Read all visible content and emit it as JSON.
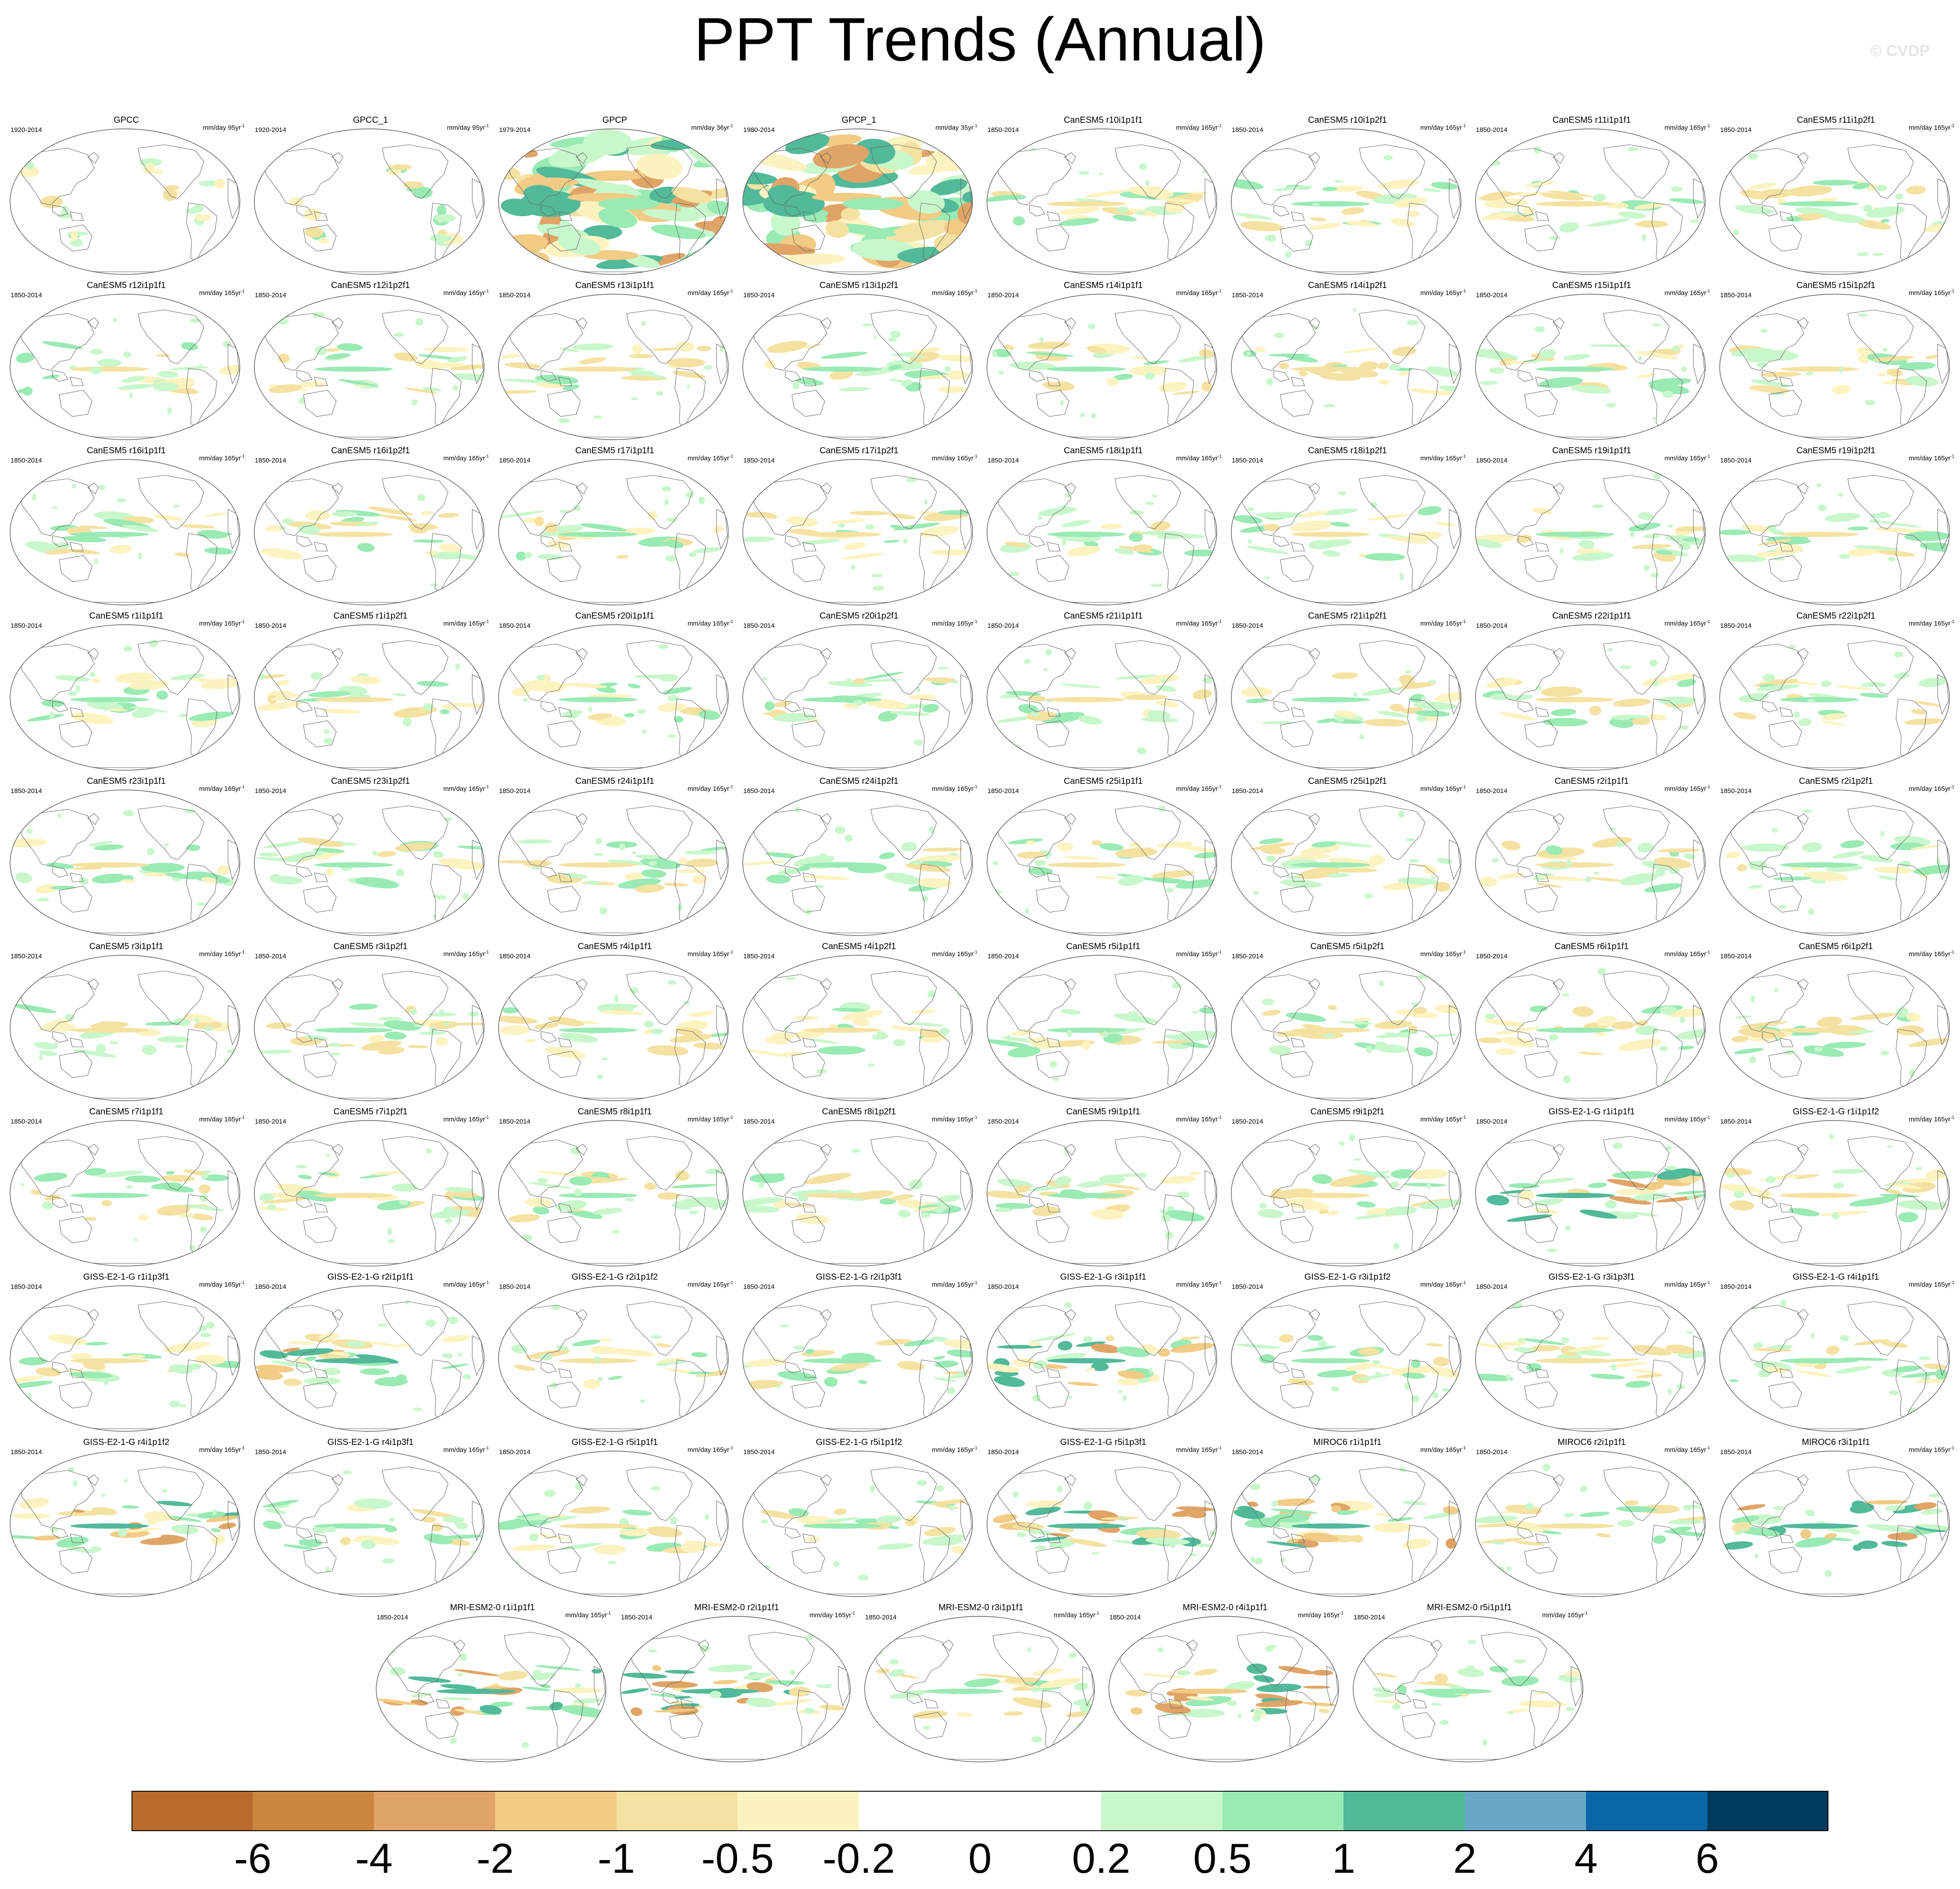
{
  "title": "PPT Trends (Annual)",
  "watermark": "© CVDP",
  "panels": [
    {
      "name": "GPCC",
      "period": "1920-2014",
      "units": "mm/day 95yr",
      "pattern": "obs_land"
    },
    {
      "name": "GPCC_1",
      "period": "1920-2014",
      "units": "mm/day 95yr",
      "pattern": "obs_land"
    },
    {
      "name": "GPCP",
      "period": "1979-2014",
      "units": "mm/day 36yr",
      "pattern": "obs_full"
    },
    {
      "name": "GPCP_1",
      "period": "1980-2014",
      "units": "mm/day 35yr",
      "pattern": "obs_full"
    },
    {
      "name": "CanESM5 r10i1p1f1",
      "period": "1850-2014",
      "units": "mm/day 165yr"
    },
    {
      "name": "CanESM5 r10i1p2f1",
      "period": "1850-2014",
      "units": "mm/day 165yr"
    },
    {
      "name": "CanESM5 r11i1p1f1",
      "period": "1850-2014",
      "units": "mm/day 165yr"
    },
    {
      "name": "CanESM5 r11i1p2f1",
      "period": "1850-2014",
      "units": "mm/day 165yr"
    },
    {
      "name": "CanESM5 r12i1p1f1",
      "period": "1850-2014",
      "units": "mm/day 165yr"
    },
    {
      "name": "CanESM5 r12i1p2f1",
      "period": "1850-2014",
      "units": "mm/day 165yr"
    },
    {
      "name": "CanESM5 r13i1p1f1",
      "period": "1850-2014",
      "units": "mm/day 165yr"
    },
    {
      "name": "CanESM5 r13i1p2f1",
      "period": "1850-2014",
      "units": "mm/day 165yr"
    },
    {
      "name": "CanESM5 r14i1p1f1",
      "period": "1850-2014",
      "units": "mm/day 165yr"
    },
    {
      "name": "CanESM5 r14i1p2f1",
      "period": "1850-2014",
      "units": "mm/day 165yr"
    },
    {
      "name": "CanESM5 r15i1p1f1",
      "period": "1850-2014",
      "units": "mm/day 165yr"
    },
    {
      "name": "CanESM5 r15i1p2f1",
      "period": "1850-2014",
      "units": "mm/day 165yr"
    },
    {
      "name": "CanESM5 r16i1p1f1",
      "period": "1850-2014",
      "units": "mm/day 165yr"
    },
    {
      "name": "CanESM5 r16i1p2f1",
      "period": "1850-2014",
      "units": "mm/day 165yr"
    },
    {
      "name": "CanESM5 r17i1p1f1",
      "period": "1850-2014",
      "units": "mm/day 165yr"
    },
    {
      "name": "CanESM5 r17i1p2f1",
      "period": "1850-2014",
      "units": "mm/day 165yr"
    },
    {
      "name": "CanESM5 r18i1p1f1",
      "period": "1850-2014",
      "units": "mm/day 165yr"
    },
    {
      "name": "CanESM5 r18i1p2f1",
      "period": "1850-2014",
      "units": "mm/day 165yr"
    },
    {
      "name": "CanESM5 r19i1p1f1",
      "period": "1850-2014",
      "units": "mm/day 165yr"
    },
    {
      "name": "CanESM5 r19i1p2f1",
      "period": "1850-2014",
      "units": "mm/day 165yr"
    },
    {
      "name": "CanESM5 r1i1p1f1",
      "period": "1850-2014",
      "units": "mm/day 165yr"
    },
    {
      "name": "CanESM5 r1i1p2f1",
      "period": "1850-2014",
      "units": "mm/day 165yr"
    },
    {
      "name": "CanESM5 r20i1p1f1",
      "period": "1850-2014",
      "units": "mm/day 165yr"
    },
    {
      "name": "CanESM5 r20i1p2f1",
      "period": "1850-2014",
      "units": "mm/day 165yr"
    },
    {
      "name": "CanESM5 r21i1p1f1",
      "period": "1850-2014",
      "units": "mm/day 165yr"
    },
    {
      "name": "CanESM5 r21i1p2f1",
      "period": "1850-2014",
      "units": "mm/day 165yr"
    },
    {
      "name": "CanESM5 r22i1p1f1",
      "period": "1850-2014",
      "units": "mm/day 165yr"
    },
    {
      "name": "CanESM5 r22i1p2f1",
      "period": "1850-2014",
      "units": "mm/day 165yr"
    },
    {
      "name": "CanESM5 r23i1p1f1",
      "period": "1850-2014",
      "units": "mm/day 165yr"
    },
    {
      "name": "CanESM5 r23i1p2f1",
      "period": "1850-2014",
      "units": "mm/day 165yr"
    },
    {
      "name": "CanESM5 r24i1p1f1",
      "period": "1850-2014",
      "units": "mm/day 165yr"
    },
    {
      "name": "CanESM5 r24i1p2f1",
      "period": "1850-2014",
      "units": "mm/day 165yr"
    },
    {
      "name": "CanESM5 r25i1p1f1",
      "period": "1850-2014",
      "units": "mm/day 165yr"
    },
    {
      "name": "CanESM5 r25i1p2f1",
      "period": "1850-2014",
      "units": "mm/day 165yr"
    },
    {
      "name": "CanESM5 r2i1p1f1",
      "period": "1850-2014",
      "units": "mm/day 165yr"
    },
    {
      "name": "CanESM5 r2i1p2f1",
      "period": "1850-2014",
      "units": "mm/day 165yr"
    },
    {
      "name": "CanESM5 r3i1p1f1",
      "period": "1850-2014",
      "units": "mm/day 165yr"
    },
    {
      "name": "CanESM5 r3i1p2f1",
      "period": "1850-2014",
      "units": "mm/day 165yr"
    },
    {
      "name": "CanESM5 r4i1p1f1",
      "period": "1850-2014",
      "units": "mm/day 165yr"
    },
    {
      "name": "CanESM5 r4i1p2f1",
      "period": "1850-2014",
      "units": "mm/day 165yr"
    },
    {
      "name": "CanESM5 r5i1p1f1",
      "period": "1850-2014",
      "units": "mm/day 165yr"
    },
    {
      "name": "CanESM5 r5i1p2f1",
      "period": "1850-2014",
      "units": "mm/day 165yr"
    },
    {
      "name": "CanESM5 r6i1p1f1",
      "period": "1850-2014",
      "units": "mm/day 165yr"
    },
    {
      "name": "CanESM5 r6i1p2f1",
      "period": "1850-2014",
      "units": "mm/day 165yr"
    },
    {
      "name": "CanESM5 r7i1p1f1",
      "period": "1850-2014",
      "units": "mm/day 165yr"
    },
    {
      "name": "CanESM5 r7i1p2f1",
      "period": "1850-2014",
      "units": "mm/day 165yr"
    },
    {
      "name": "CanESM5 r8i1p1f1",
      "period": "1850-2014",
      "units": "mm/day 165yr"
    },
    {
      "name": "CanESM5 r8i1p2f1",
      "period": "1850-2014",
      "units": "mm/day 165yr"
    },
    {
      "name": "CanESM5 r9i1p1f1",
      "period": "1850-2014",
      "units": "mm/day 165yr"
    },
    {
      "name": "CanESM5 r9i1p2f1",
      "period": "1850-2014",
      "units": "mm/day 165yr"
    },
    {
      "name": "GISS-E2-1-G r1i1p1f1",
      "period": "1850-2014",
      "units": "mm/day 165yr",
      "pattern": "strong"
    },
    {
      "name": "GISS-E2-1-G r1i1p1f2",
      "period": "1850-2014",
      "units": "mm/day 165yr"
    },
    {
      "name": "GISS-E2-1-G r1i1p3f1",
      "period": "1850-2014",
      "units": "mm/day 165yr"
    },
    {
      "name": "GISS-E2-1-G r2i1p1f1",
      "period": "1850-2014",
      "units": "mm/day 165yr",
      "pattern": "strong"
    },
    {
      "name": "GISS-E2-1-G r2i1p1f2",
      "period": "1850-2014",
      "units": "mm/day 165yr"
    },
    {
      "name": "GISS-E2-1-G r2i1p3f1",
      "period": "1850-2014",
      "units": "mm/day 165yr"
    },
    {
      "name": "GISS-E2-1-G r3i1p1f1",
      "period": "1850-2014",
      "units": "mm/day 165yr",
      "pattern": "strong"
    },
    {
      "name": "GISS-E2-1-G r3i1p1f2",
      "period": "1850-2014",
      "units": "mm/day 165yr"
    },
    {
      "name": "GISS-E2-1-G r3i1p3f1",
      "period": "1850-2014",
      "units": "mm/day 165yr"
    },
    {
      "name": "GISS-E2-1-G r4i1p1f1",
      "period": "1850-2014",
      "units": "mm/day 165yr"
    },
    {
      "name": "GISS-E2-1-G r4i1p1f2",
      "period": "1850-2014",
      "units": "mm/day 165yr",
      "pattern": "strong"
    },
    {
      "name": "GISS-E2-1-G r4i1p3f1",
      "period": "1850-2014",
      "units": "mm/day 165yr"
    },
    {
      "name": "GISS-E2-1-G r5i1p1f1",
      "period": "1850-2014",
      "units": "mm/day 165yr"
    },
    {
      "name": "GISS-E2-1-G r5i1p1f2",
      "period": "1850-2014",
      "units": "mm/day 165yr"
    },
    {
      "name": "GISS-E2-1-G r5i1p3f1",
      "period": "1850-2014",
      "units": "mm/day 165yr",
      "pattern": "strong"
    },
    {
      "name": "MIROC6 r1i1p1f1",
      "period": "1850-2014",
      "units": "mm/day 165yr",
      "pattern": "strong"
    },
    {
      "name": "MIROC6 r2i1p1f1",
      "period": "1850-2014",
      "units": "mm/day 165yr"
    },
    {
      "name": "MIROC6 r3i1p1f1",
      "period": "1850-2014",
      "units": "mm/day 165yr",
      "pattern": "strong"
    },
    {
      "name": "MRI-ESM2-0 r1i1p1f1",
      "period": "1850-2014",
      "units": "mm/day 165yr",
      "pattern": "strong"
    },
    {
      "name": "MRI-ESM2-0 r2i1p1f1",
      "period": "1850-2014",
      "units": "mm/day 165yr",
      "pattern": "strong"
    },
    {
      "name": "MRI-ESM2-0 r3i1p1f1",
      "period": "1850-2014",
      "units": "mm/day 165yr"
    },
    {
      "name": "MRI-ESM2-0 r4i1p1f1",
      "period": "1850-2014",
      "units": "mm/day 165yr",
      "pattern": "strong"
    },
    {
      "name": "MRI-ESM2-0 r5i1p1f1",
      "period": "1850-2014",
      "units": "mm/day 165yr"
    }
  ],
  "colorbar": {
    "colors": [
      "#b86b2b",
      "#cb853f",
      "#e0a466",
      "#f2cb84",
      "#f5e2a2",
      "#fdf3c0",
      "#ffffff",
      "#ffffff",
      "#c9f7cc",
      "#9aeab4",
      "#52b99a",
      "#6aa7c6",
      "#0a66a6",
      "#003a5c"
    ],
    "labels": [
      "-6",
      "-4",
      "-2",
      "-1",
      "-0.5",
      "-0.2",
      "0",
      "0.2",
      "0.5",
      "1",
      "2",
      "4",
      "6"
    ]
  }
}
